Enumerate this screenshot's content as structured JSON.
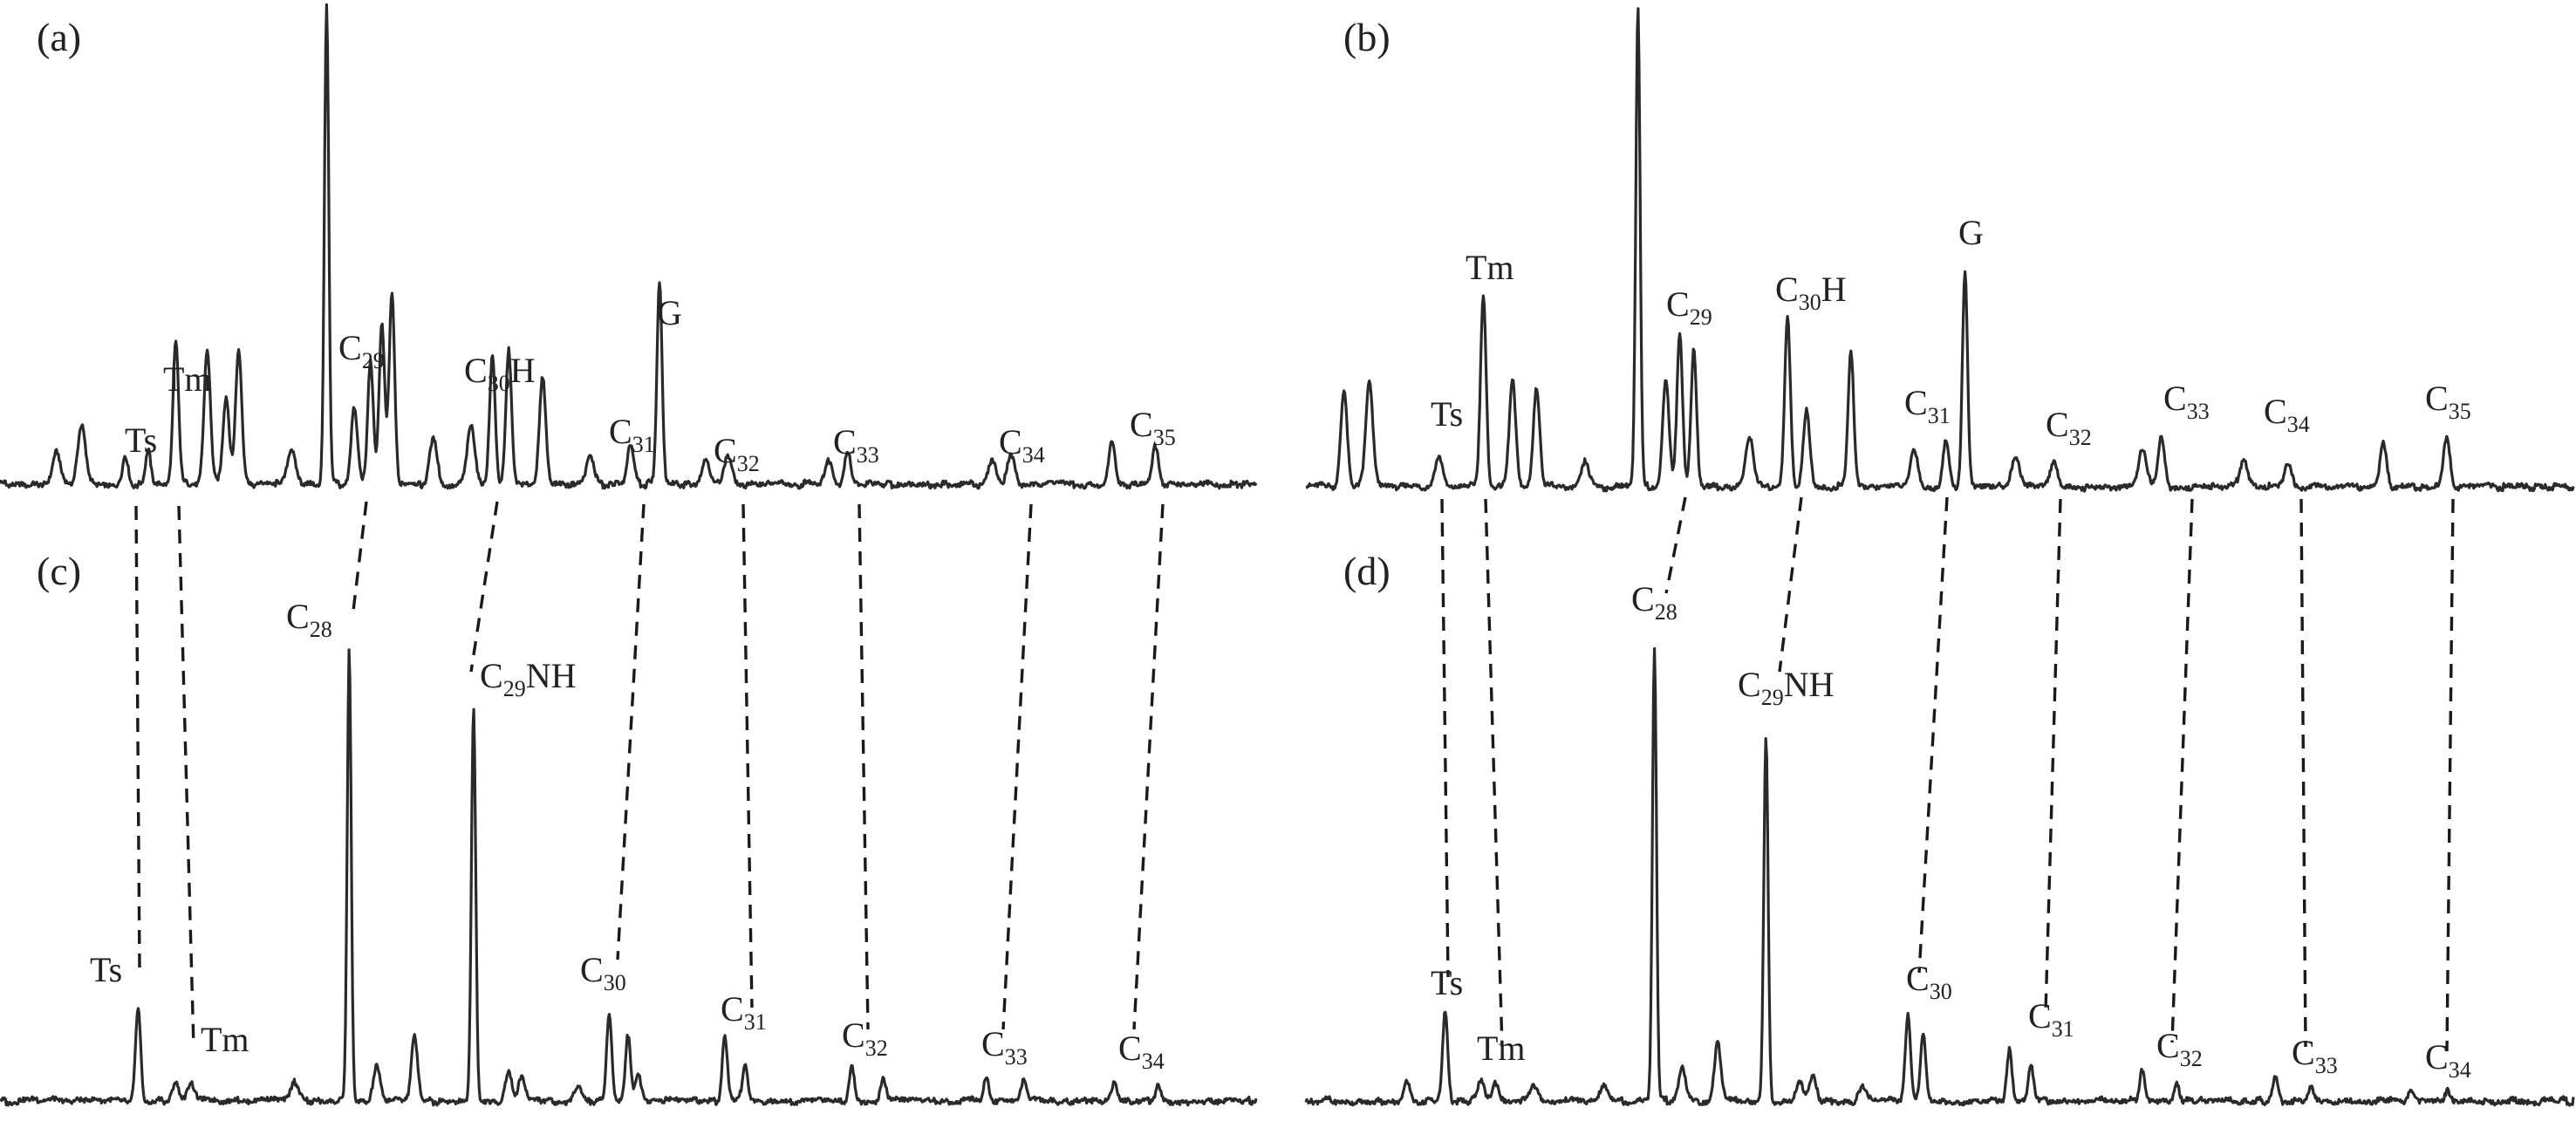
{
  "chart_data": {
    "type": "line",
    "description_of_axes": "",
    "panels": [
      {
        "id": "a",
        "letter": "(a)",
        "peaks": [
          {
            "x": 0.1,
            "h": 0.06,
            "w": 0.0022
          },
          {
            "x": 0.045,
            "h": 0.07,
            "w": 0.003
          },
          {
            "x": 0.065,
            "h": 0.12,
            "w": 0.003
          },
          {
            "x": 0.118,
            "h": 0.07,
            "w": 0.002
          },
          {
            "x": 0.14,
            "h": 0.3,
            "w": 0.0022
          },
          {
            "x": 0.165,
            "h": 0.28,
            "w": 0.0025
          },
          {
            "x": 0.18,
            "h": 0.18,
            "w": 0.0025
          },
          {
            "x": 0.19,
            "h": 0.28,
            "w": 0.0025
          },
          {
            "x": 0.232,
            "h": 0.07,
            "w": 0.003
          },
          {
            "x": 0.26,
            "h": 1.0,
            "w": 0.0017
          },
          {
            "x": 0.282,
            "h": 0.16,
            "w": 0.0025
          },
          {
            "x": 0.295,
            "h": 0.26,
            "w": 0.0022
          },
          {
            "x": 0.304,
            "h": 0.33,
            "w": 0.0022
          },
          {
            "x": 0.312,
            "h": 0.4,
            "w": 0.0022
          },
          {
            "x": 0.345,
            "h": 0.09,
            "w": 0.003
          },
          {
            "x": 0.375,
            "h": 0.12,
            "w": 0.003
          },
          {
            "x": 0.392,
            "h": 0.27,
            "w": 0.0022
          },
          {
            "x": 0.405,
            "h": 0.28,
            "w": 0.0022
          },
          {
            "x": 0.432,
            "h": 0.22,
            "w": 0.0025
          },
          {
            "x": 0.47,
            "h": 0.06,
            "w": 0.003
          },
          {
            "x": 0.502,
            "h": 0.08,
            "w": 0.0025
          },
          {
            "x": 0.525,
            "h": 0.42,
            "w": 0.002
          },
          {
            "x": 0.562,
            "h": 0.05,
            "w": 0.003
          },
          {
            "x": 0.58,
            "h": 0.06,
            "w": 0.003
          },
          {
            "x": 0.66,
            "h": 0.05,
            "w": 0.003
          },
          {
            "x": 0.675,
            "h": 0.07,
            "w": 0.0025
          },
          {
            "x": 0.79,
            "h": 0.05,
            "w": 0.003
          },
          {
            "x": 0.805,
            "h": 0.06,
            "w": 0.003
          },
          {
            "x": 0.885,
            "h": 0.09,
            "w": 0.0025
          },
          {
            "x": 0.92,
            "h": 0.08,
            "w": 0.0025
          }
        ],
        "labels": [
          {
            "text": "Ts",
            "sub": "",
            "tail": ""
          },
          {
            "text": "Tm",
            "sub": "",
            "tail": ""
          },
          {
            "text": "C",
            "sub": "29",
            "tail": ""
          },
          {
            "text": "C",
            "sub": "30",
            "tail": "H"
          },
          {
            "text": "C",
            "sub": "31",
            "tail": ""
          },
          {
            "text": "G",
            "sub": "",
            "tail": ""
          },
          {
            "text": "C",
            "sub": "32",
            "tail": ""
          },
          {
            "text": "C",
            "sub": "33",
            "tail": ""
          },
          {
            "text": "C",
            "sub": "34",
            "tail": ""
          },
          {
            "text": "C",
            "sub": "35",
            "tail": ""
          }
        ]
      },
      {
        "id": "b",
        "letter": "(b)",
        "peaks": [
          {
            "x": 0.03,
            "h": 0.2,
            "w": 0.0025
          },
          {
            "x": 0.05,
            "h": 0.22,
            "w": 0.0028
          },
          {
            "x": 0.105,
            "h": 0.06,
            "w": 0.003
          },
          {
            "x": 0.14,
            "h": 0.4,
            "w": 0.0022
          },
          {
            "x": 0.163,
            "h": 0.22,
            "w": 0.0025
          },
          {
            "x": 0.182,
            "h": 0.2,
            "w": 0.0025
          },
          {
            "x": 0.22,
            "h": 0.05,
            "w": 0.003
          },
          {
            "x": 0.262,
            "h": 1.0,
            "w": 0.0017
          },
          {
            "x": 0.284,
            "h": 0.22,
            "w": 0.0025
          },
          {
            "x": 0.295,
            "h": 0.32,
            "w": 0.0022
          },
          {
            "x": 0.306,
            "h": 0.28,
            "w": 0.0022
          },
          {
            "x": 0.35,
            "h": 0.1,
            "w": 0.003
          },
          {
            "x": 0.38,
            "h": 0.35,
            "w": 0.0022
          },
          {
            "x": 0.395,
            "h": 0.16,
            "w": 0.0025
          },
          {
            "x": 0.43,
            "h": 0.28,
            "w": 0.0022
          },
          {
            "x": 0.48,
            "h": 0.08,
            "w": 0.003
          },
          {
            "x": 0.505,
            "h": 0.1,
            "w": 0.0025
          },
          {
            "x": 0.52,
            "h": 0.45,
            "w": 0.002
          },
          {
            "x": 0.56,
            "h": 0.06,
            "w": 0.003
          },
          {
            "x": 0.59,
            "h": 0.05,
            "w": 0.003
          },
          {
            "x": 0.66,
            "h": 0.08,
            "w": 0.003
          },
          {
            "x": 0.675,
            "h": 0.1,
            "w": 0.0025
          },
          {
            "x": 0.74,
            "h": 0.06,
            "w": 0.003
          },
          {
            "x": 0.775,
            "h": 0.05,
            "w": 0.003
          },
          {
            "x": 0.85,
            "h": 0.09,
            "w": 0.0025
          },
          {
            "x": 0.9,
            "h": 0.1,
            "w": 0.0025
          }
        ],
        "labels": [
          {
            "text": "Ts",
            "sub": "",
            "tail": ""
          },
          {
            "text": "Tm",
            "sub": "",
            "tail": ""
          },
          {
            "text": "C",
            "sub": "29",
            "tail": ""
          },
          {
            "text": "C",
            "sub": "30",
            "tail": "H"
          },
          {
            "text": "C",
            "sub": "31",
            "tail": ""
          },
          {
            "text": "G",
            "sub": "",
            "tail": ""
          },
          {
            "text": "C",
            "sub": "32",
            "tail": ""
          },
          {
            "text": "C",
            "sub": "33",
            "tail": ""
          },
          {
            "text": "C",
            "sub": "34",
            "tail": ""
          },
          {
            "text": "C",
            "sub": "35",
            "tail": ""
          }
        ]
      },
      {
        "id": "c",
        "letter": "(c)",
        "peaks": [
          {
            "x": 0.11,
            "h": 0.2,
            "w": 0.002
          },
          {
            "x": 0.14,
            "h": 0.04,
            "w": 0.0025
          },
          {
            "x": 0.152,
            "h": 0.04,
            "w": 0.0025
          },
          {
            "x": 0.235,
            "h": 0.04,
            "w": 0.003
          },
          {
            "x": 0.278,
            "h": 0.95,
            "w": 0.0016
          },
          {
            "x": 0.3,
            "h": 0.07,
            "w": 0.0025
          },
          {
            "x": 0.33,
            "h": 0.14,
            "w": 0.0025
          },
          {
            "x": 0.377,
            "h": 0.82,
            "w": 0.0017
          },
          {
            "x": 0.405,
            "h": 0.06,
            "w": 0.0025
          },
          {
            "x": 0.415,
            "h": 0.05,
            "w": 0.0025
          },
          {
            "x": 0.46,
            "h": 0.03,
            "w": 0.003
          },
          {
            "x": 0.485,
            "h": 0.19,
            "w": 0.002
          },
          {
            "x": 0.5,
            "h": 0.14,
            "w": 0.002
          },
          {
            "x": 0.508,
            "h": 0.05,
            "w": 0.0025
          },
          {
            "x": 0.577,
            "h": 0.13,
            "w": 0.002
          },
          {
            "x": 0.593,
            "h": 0.08,
            "w": 0.002
          },
          {
            "x": 0.678,
            "h": 0.08,
            "w": 0.002
          },
          {
            "x": 0.703,
            "h": 0.05,
            "w": 0.002
          },
          {
            "x": 0.785,
            "h": 0.05,
            "w": 0.002
          },
          {
            "x": 0.815,
            "h": 0.04,
            "w": 0.002
          },
          {
            "x": 0.887,
            "h": 0.04,
            "w": 0.002
          },
          {
            "x": 0.922,
            "h": 0.03,
            "w": 0.002
          }
        ],
        "labels": [
          {
            "text": "Ts",
            "sub": "",
            "tail": ""
          },
          {
            "text": "Tm",
            "sub": "",
            "tail": ""
          },
          {
            "text": "C",
            "sub": "28",
            "tail": ""
          },
          {
            "text": "C",
            "sub": "29",
            "tail": "NH"
          },
          {
            "text": "C",
            "sub": "30",
            "tail": ""
          },
          {
            "text": "C",
            "sub": "31",
            "tail": ""
          },
          {
            "text": "C",
            "sub": "32",
            "tail": ""
          },
          {
            "text": "C",
            "sub": "33",
            "tail": ""
          },
          {
            "text": "C",
            "sub": "34",
            "tail": ""
          }
        ]
      },
      {
        "id": "d",
        "letter": "(d)",
        "peaks": [
          {
            "x": 0.08,
            "h": 0.04,
            "w": 0.0025
          },
          {
            "x": 0.11,
            "h": 0.19,
            "w": 0.002
          },
          {
            "x": 0.138,
            "h": 0.04,
            "w": 0.0025
          },
          {
            "x": 0.15,
            "h": 0.04,
            "w": 0.0025
          },
          {
            "x": 0.18,
            "h": 0.03,
            "w": 0.003
          },
          {
            "x": 0.235,
            "h": 0.03,
            "w": 0.003
          },
          {
            "x": 0.275,
            "h": 0.95,
            "w": 0.0016
          },
          {
            "x": 0.297,
            "h": 0.07,
            "w": 0.0025
          },
          {
            "x": 0.325,
            "h": 0.12,
            "w": 0.0025
          },
          {
            "x": 0.363,
            "h": 0.76,
            "w": 0.0017
          },
          {
            "x": 0.39,
            "h": 0.04,
            "w": 0.0025
          },
          {
            "x": 0.4,
            "h": 0.05,
            "w": 0.0025
          },
          {
            "x": 0.44,
            "h": 0.03,
            "w": 0.003
          },
          {
            "x": 0.475,
            "h": 0.18,
            "w": 0.002
          },
          {
            "x": 0.487,
            "h": 0.14,
            "w": 0.002
          },
          {
            "x": 0.555,
            "h": 0.11,
            "w": 0.002
          },
          {
            "x": 0.572,
            "h": 0.07,
            "w": 0.002
          },
          {
            "x": 0.66,
            "h": 0.07,
            "w": 0.002
          },
          {
            "x": 0.687,
            "h": 0.04,
            "w": 0.002
          },
          {
            "x": 0.765,
            "h": 0.05,
            "w": 0.002
          },
          {
            "x": 0.793,
            "h": 0.03,
            "w": 0.002
          },
          {
            "x": 0.872,
            "h": 0.03,
            "w": 0.002
          },
          {
            "x": 0.9,
            "h": 0.02,
            "w": 0.002
          }
        ],
        "labels": [
          {
            "text": "Ts",
            "sub": "",
            "tail": ""
          },
          {
            "text": "Tm",
            "sub": "",
            "tail": ""
          },
          {
            "text": "C",
            "sub": "28",
            "tail": ""
          },
          {
            "text": "C",
            "sub": "29",
            "tail": "NH"
          },
          {
            "text": "C",
            "sub": "30",
            "tail": ""
          },
          {
            "text": "C",
            "sub": "31",
            "tail": ""
          },
          {
            "text": "C",
            "sub": "32",
            "tail": ""
          },
          {
            "text": "C",
            "sub": "33",
            "tail": ""
          },
          {
            "text": "C",
            "sub": "34",
            "tail": ""
          }
        ]
      }
    ],
    "correlations": [
      {
        "panels": [
          "a",
          "c"
        ],
        "pairs": 9
      },
      {
        "panels": [
          "b",
          "d"
        ],
        "pairs": 9
      }
    ]
  },
  "colors": {
    "trace": "#2a2a2a",
    "text": "#222222",
    "background": "#ffffff"
  }
}
